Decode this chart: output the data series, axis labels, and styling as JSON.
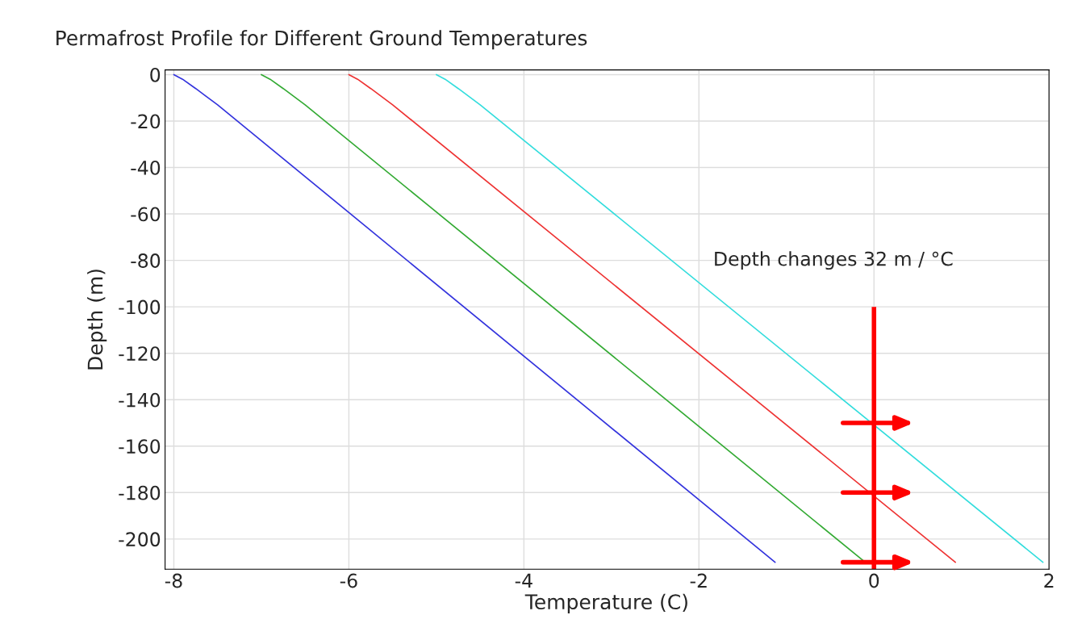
{
  "chart_data": {
    "type": "line",
    "title": "Permafrost Profile for Different Ground Temperatures",
    "xlabel": "Temperature (C)",
    "ylabel": "Depth (m)",
    "series": [
      {
        "color": "#3333dd",
        "x": [
          -8,
          -7.9,
          -7.75,
          -7.5,
          -1.13
        ],
        "values": [
          0,
          -2,
          -6,
          -13,
          -210
        ]
      },
      {
        "color": "#33aa33",
        "x": [
          -7,
          -6.9,
          -6.75,
          -6.5,
          -0.1
        ],
        "values": [
          0,
          -2,
          -6,
          -13,
          -210
        ]
      },
      {
        "color": "#ee3333",
        "x": [
          -6,
          -5.9,
          -5.75,
          -5.5,
          0.93
        ],
        "values": [
          0,
          -2,
          -6,
          -13,
          -210
        ]
      },
      {
        "color": "#33dddd",
        "x": [
          -5,
          -4.9,
          -4.75,
          -4.5,
          1.93
        ],
        "values": [
          0,
          -2,
          -6,
          -13,
          -210
        ]
      }
    ],
    "xlim": [
      -8.1,
      2
    ],
    "ylim": [
      -213,
      2
    ],
    "xticks": [
      -8,
      -6,
      -4,
      -2,
      0,
      2
    ],
    "yticks": [
      0,
      -20,
      -40,
      -60,
      -80,
      -100,
      -120,
      -140,
      -160,
      -180,
      -200
    ],
    "grid": true,
    "marker": "none",
    "line_style": "solid",
    "annotations": [
      "Depth changes 32 m / °C"
    ]
  }
}
